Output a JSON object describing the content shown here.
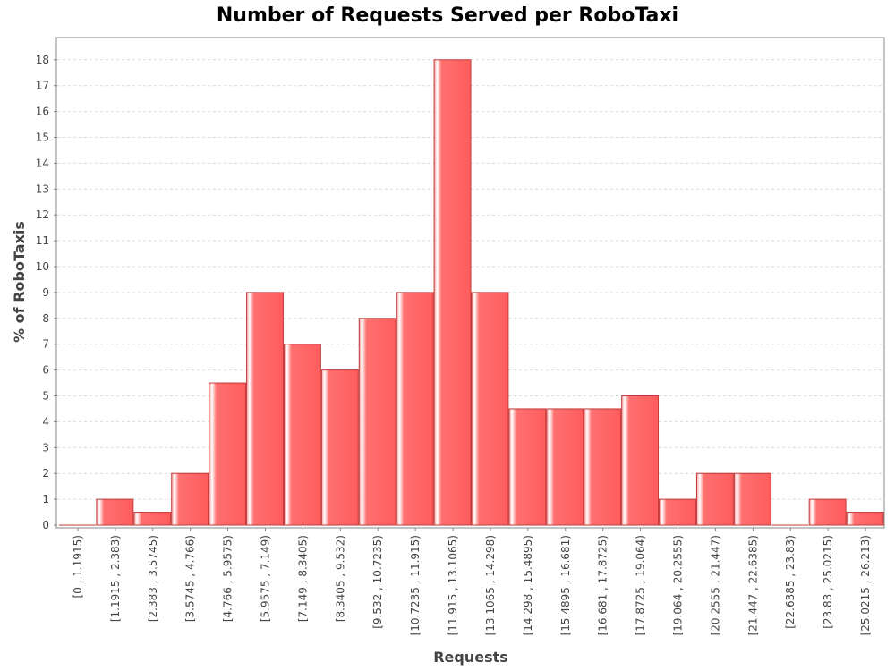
{
  "chart_data": {
    "type": "bar",
    "title": "Number of Requests Served per RoboTaxi",
    "xlabel": "Requests",
    "ylabel": "% of RoboTaxis",
    "ylim": [
      0,
      19
    ],
    "yticks": [
      0,
      1,
      2,
      3,
      4,
      5,
      6,
      7,
      8,
      9,
      10,
      11,
      12,
      13,
      14,
      15,
      16,
      17,
      18
    ],
    "grid": true,
    "bar_color": "#ff6666",
    "bar_border_color": "#c03b3b",
    "categories": [
      "[0 , 1.1915)",
      "[1.1915 , 2.383)",
      "[2.383 , 3.5745)",
      "[3.5745 , 4.766)",
      "[4.766 , 5.9575)",
      "[5.9575 , 7.149)",
      "[7.149 , 8.3405)",
      "[8.3405 , 9.532)",
      "[9.532 , 10.7235)",
      "[10.7235 , 11.915)",
      "[11.915 , 13.1065)",
      "[13.1065 , 14.298)",
      "[14.298 , 15.4895)",
      "[15.4895 , 16.681)",
      "[16.681 , 17.8725)",
      "[17.8725 , 19.064)",
      "[19.064 , 20.2555)",
      "[20.2555 , 21.447)",
      "[21.447 , 22.6385)",
      "[22.6385 , 23.83)",
      "[23.83 , 25.0215)",
      "[25.0215 , 26.213)"
    ],
    "values": [
      0,
      1,
      0.5,
      2,
      5.5,
      9,
      7,
      6,
      8,
      9,
      18,
      9,
      4.5,
      4.5,
      4.5,
      5,
      1,
      2,
      2,
      0,
      1,
      0.5
    ]
  }
}
